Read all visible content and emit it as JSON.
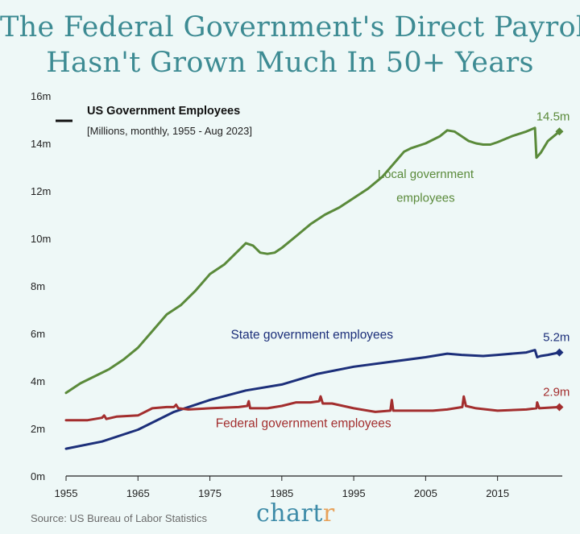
{
  "title_line1": "The Federal Government's Direct Payroll",
  "title_line2": "Hasn't Grown Much In 50+ Years",
  "source": "Source: US Bureau of Labor Statistics",
  "logo_main": "chart",
  "logo_accent": "r",
  "colors": {
    "local": "#5a8a3a",
    "state": "#1c2f7a",
    "federal": "#a32e2e",
    "title": "#3d8b93"
  },
  "chart_data": {
    "type": "line",
    "legend_title": "US Government Employees",
    "legend_subtitle": "[Millions, monthly, 1955 - Aug 2023]",
    "xlim": [
      1955,
      2024
    ],
    "ylim": [
      0,
      16
    ],
    "x_ticks": [
      1955,
      1965,
      1975,
      1985,
      1995,
      2005,
      2015
    ],
    "y_ticks": [
      {
        "v": 0,
        "label": "0m"
      },
      {
        "v": 2,
        "label": "2m"
      },
      {
        "v": 4,
        "label": "4m"
      },
      {
        "v": 6,
        "label": "6m"
      },
      {
        "v": 8,
        "label": "8m"
      },
      {
        "v": 10,
        "label": "10m"
      },
      {
        "v": 12,
        "label": "12m"
      },
      {
        "v": 14,
        "label": "14m"
      },
      {
        "v": 16,
        "label": "16m"
      }
    ],
    "series": [
      {
        "key": "local",
        "name": "Local government employees",
        "name_lines": [
          "Local government",
          "employees"
        ],
        "end_label": "14.5m",
        "end_value": 14.5,
        "points": [
          [
            1955,
            3.5
          ],
          [
            1957,
            3.9
          ],
          [
            1959,
            4.2
          ],
          [
            1961,
            4.5
          ],
          [
            1963,
            4.9
          ],
          [
            1965,
            5.4
          ],
          [
            1967,
            6.1
          ],
          [
            1969,
            6.8
          ],
          [
            1971,
            7.2
          ],
          [
            1973,
            7.8
          ],
          [
            1975,
            8.5
          ],
          [
            1977,
            8.9
          ],
          [
            1979,
            9.5
          ],
          [
            1980,
            9.8
          ],
          [
            1981,
            9.7
          ],
          [
            1982,
            9.4
          ],
          [
            1983,
            9.35
          ],
          [
            1984,
            9.4
          ],
          [
            1985,
            9.6
          ],
          [
            1987,
            10.1
          ],
          [
            1989,
            10.6
          ],
          [
            1991,
            11.0
          ],
          [
            1993,
            11.3
          ],
          [
            1995,
            11.7
          ],
          [
            1997,
            12.1
          ],
          [
            1999,
            12.6
          ],
          [
            2001,
            13.3
          ],
          [
            2002,
            13.65
          ],
          [
            2003,
            13.8
          ],
          [
            2005,
            14.0
          ],
          [
            2007,
            14.3
          ],
          [
            2008,
            14.55
          ],
          [
            2009,
            14.5
          ],
          [
            2010,
            14.3
          ],
          [
            2011,
            14.1
          ],
          [
            2012,
            14.0
          ],
          [
            2013,
            13.95
          ],
          [
            2014,
            13.95
          ],
          [
            2015,
            14.05
          ],
          [
            2017,
            14.3
          ],
          [
            2019,
            14.5
          ],
          [
            2020.2,
            14.65
          ],
          [
            2020.4,
            13.4
          ],
          [
            2021,
            13.6
          ],
          [
            2022,
            14.1
          ],
          [
            2023.6,
            14.5
          ]
        ]
      },
      {
        "key": "state",
        "name": "State government employees",
        "end_label": "5.2m",
        "end_value": 5.2,
        "points": [
          [
            1955,
            1.15
          ],
          [
            1960,
            1.45
          ],
          [
            1965,
            1.95
          ],
          [
            1970,
            2.7
          ],
          [
            1975,
            3.2
          ],
          [
            1980,
            3.6
          ],
          [
            1985,
            3.85
          ],
          [
            1990,
            4.3
          ],
          [
            1995,
            4.6
          ],
          [
            2000,
            4.8
          ],
          [
            2005,
            5.0
          ],
          [
            2008,
            5.15
          ],
          [
            2010,
            5.1
          ],
          [
            2013,
            5.05
          ],
          [
            2015,
            5.1
          ],
          [
            2019,
            5.2
          ],
          [
            2020.2,
            5.3
          ],
          [
            2020.5,
            5.0
          ],
          [
            2021,
            5.05
          ],
          [
            2022,
            5.1
          ],
          [
            2023.6,
            5.2
          ]
        ]
      },
      {
        "key": "federal",
        "name": "Federal government employees",
        "end_label": "2.9m",
        "end_value": 2.9,
        "points": [
          [
            1955,
            2.35
          ],
          [
            1958,
            2.35
          ],
          [
            1960,
            2.45
          ],
          [
            1960.3,
            2.55
          ],
          [
            1960.6,
            2.4
          ],
          [
            1962,
            2.5
          ],
          [
            1965,
            2.55
          ],
          [
            1967,
            2.85
          ],
          [
            1969,
            2.9
          ],
          [
            1970,
            2.9
          ],
          [
            1970.3,
            3.0
          ],
          [
            1970.6,
            2.85
          ],
          [
            1972,
            2.8
          ],
          [
            1975,
            2.85
          ],
          [
            1979,
            2.9
          ],
          [
            1980.2,
            2.95
          ],
          [
            1980.4,
            3.15
          ],
          [
            1980.6,
            2.85
          ],
          [
            1983,
            2.85
          ],
          [
            1985,
            2.95
          ],
          [
            1987,
            3.1
          ],
          [
            1989,
            3.1
          ],
          [
            1990.2,
            3.15
          ],
          [
            1990.4,
            3.35
          ],
          [
            1990.7,
            3.05
          ],
          [
            1992,
            3.05
          ],
          [
            1995,
            2.85
          ],
          [
            1998,
            2.7
          ],
          [
            2000.1,
            2.75
          ],
          [
            2000.3,
            3.2
          ],
          [
            2000.5,
            2.75
          ],
          [
            2003,
            2.75
          ],
          [
            2006,
            2.75
          ],
          [
            2008,
            2.8
          ],
          [
            2010.1,
            2.9
          ],
          [
            2010.3,
            3.35
          ],
          [
            2010.6,
            2.95
          ],
          [
            2012,
            2.85
          ],
          [
            2015,
            2.75
          ],
          [
            2019,
            2.8
          ],
          [
            2020.4,
            2.85
          ],
          [
            2020.5,
            3.1
          ],
          [
            2020.8,
            2.85
          ],
          [
            2023.6,
            2.9
          ]
        ]
      }
    ]
  }
}
